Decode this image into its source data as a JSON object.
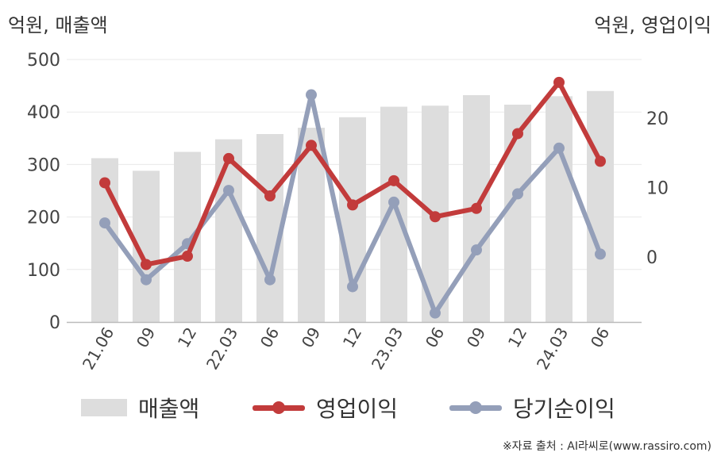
{
  "chart_data": {
    "type": "bar+line",
    "categories": [
      "21.06",
      "09",
      "12",
      "22.03",
      "06",
      "09",
      "12",
      "23.03",
      "06",
      "09",
      "12",
      "24.03",
      "06"
    ],
    "left_axis": {
      "unit_label": "억원, 매출액",
      "ylim": [
        0,
        500
      ],
      "ticks": [
        0,
        100,
        200,
        300,
        400,
        500
      ]
    },
    "right_axis": {
      "unit_label": "억원, 영업이익",
      "ylim": [
        -9.4,
        28.5
      ],
      "ticks": [
        0,
        10,
        20
      ]
    },
    "series": [
      {
        "name": "매출액",
        "type": "bar",
        "axis": "left",
        "color": "#dddddd",
        "values": [
          312,
          288,
          324,
          348,
          358,
          370,
          390,
          410,
          412,
          432,
          414,
          430,
          440
        ]
      },
      {
        "name": "영업이익",
        "type": "line",
        "axis": "right",
        "color": "#c23b3b",
        "values": [
          10.7,
          -1.1,
          0.1,
          14.2,
          8.8,
          16.1,
          7.5,
          11.0,
          5.8,
          7.0,
          17.8,
          25.2,
          13.8
        ]
      },
      {
        "name": "당기순이익",
        "type": "line",
        "axis": "right",
        "color": "#949fb9",
        "values": [
          4.9,
          -3.3,
          1.9,
          9.6,
          -3.3,
          23.4,
          -4.3,
          7.9,
          -8.1,
          1.0,
          9.1,
          15.7,
          0.4
        ]
      }
    ],
    "grid": true,
    "legend_position": "bottom"
  },
  "source_note": "※자료 출처 : AI라씨로(www.rassiro.com)"
}
